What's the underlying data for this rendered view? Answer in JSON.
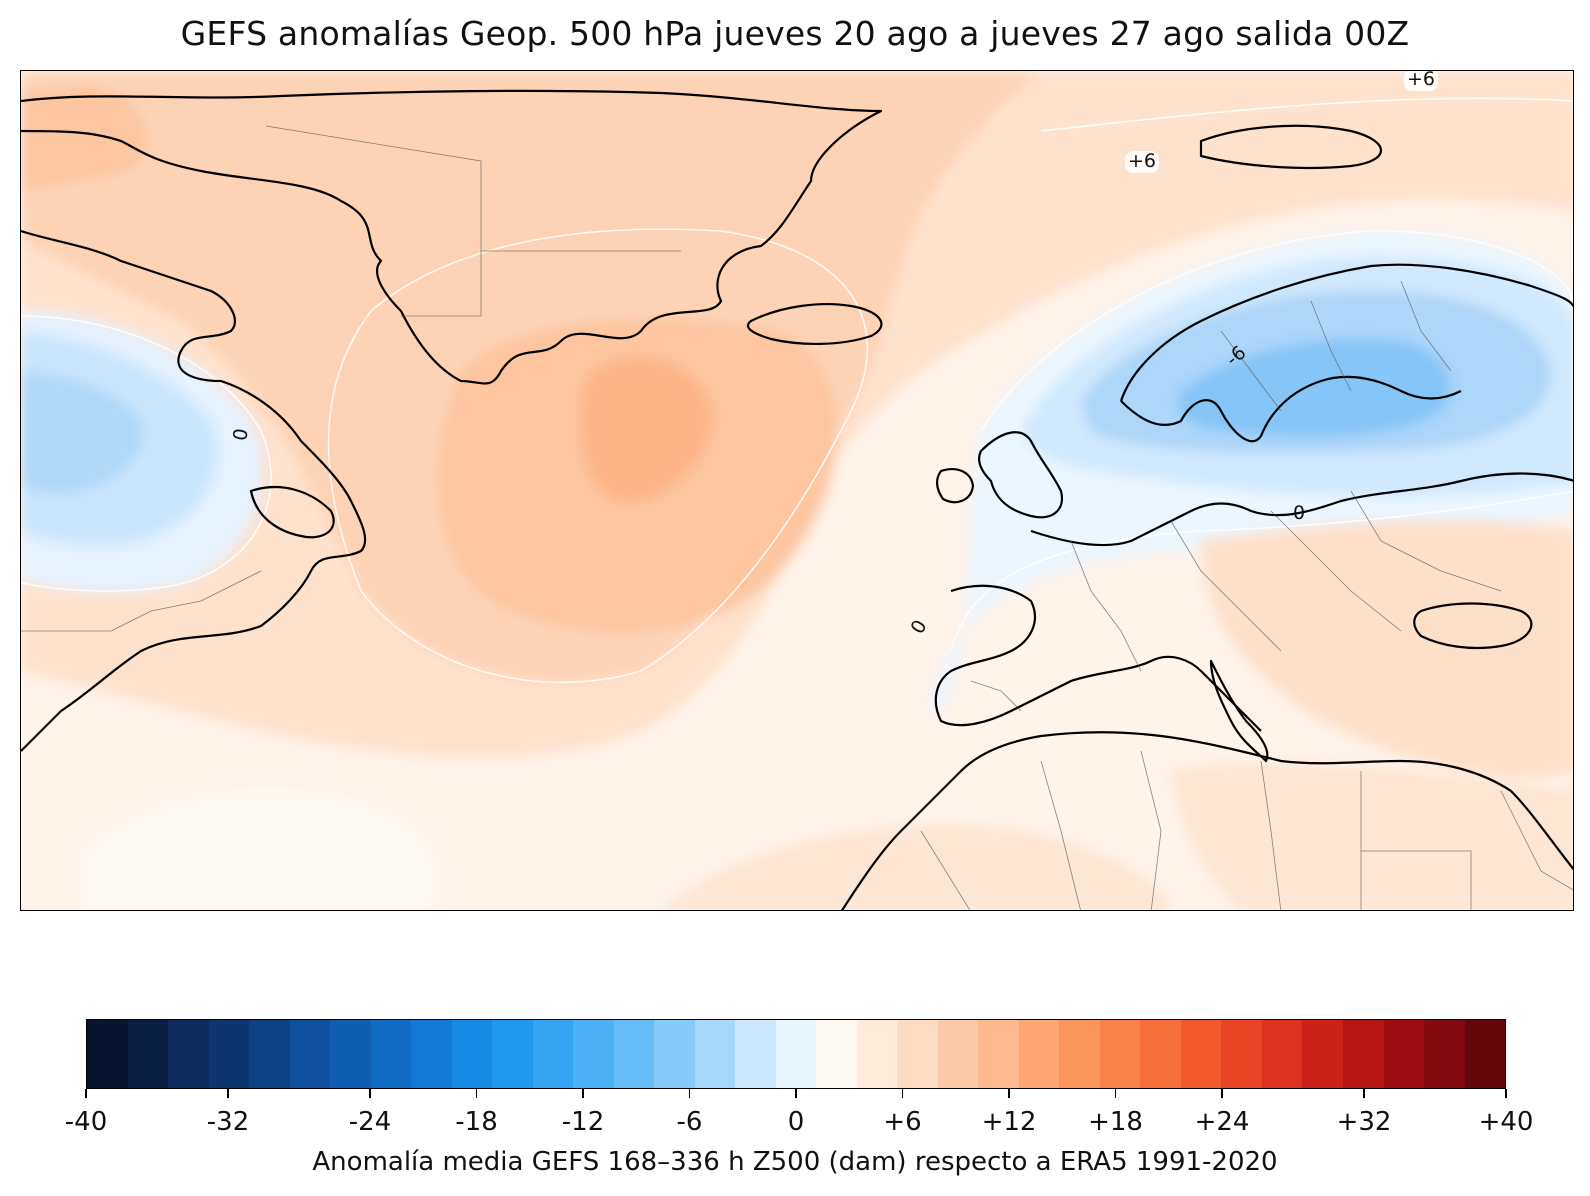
{
  "title": "GEFS anomalías Geop. 500 hPa jueves 20 ago a jueves 27 ago salida 00Z",
  "map": {
    "contour_labels": [
      {
        "text": "+6",
        "name": "contour-label-plus6-north"
      },
      {
        "text": "+6",
        "name": "contour-label-plus6-arctic"
      },
      {
        "text": "0",
        "name": "contour-label-zero-newfoundland"
      },
      {
        "text": "-6",
        "name": "contour-label-minus6-scandinavia"
      },
      {
        "text": "0",
        "name": "contour-label-zero-europe"
      },
      {
        "text": "0",
        "name": "contour-label-zero-iberia"
      }
    ],
    "colors": {
      "ocean_base": "#fff3ea",
      "coast": "#000000",
      "borders": "#555555"
    }
  },
  "colorbar": {
    "min": -40,
    "max": 40,
    "step": 2,
    "tick_labels": [
      "-40",
      "-32",
      "-24",
      "-18",
      "-12",
      "-6",
      "0",
      "+6",
      "+12",
      "+18",
      "+24",
      "+32",
      "+40"
    ],
    "tick_values": [
      -40,
      -32,
      -24,
      -18,
      -12,
      -6,
      0,
      6,
      12,
      18,
      24,
      32,
      40
    ],
    "colors": [
      "#08142e",
      "#0b1f45",
      "#0c2a5c",
      "#0d3570",
      "#0e4285",
      "#0f4f9b",
      "#0f5cb0",
      "#106bc4",
      "#127ad6",
      "#168ae5",
      "#1f98ef",
      "#34a4f2",
      "#4cb0f4",
      "#66bcf6",
      "#85caf8",
      "#a7d8fa",
      "#cbe8fc",
      "#eaf6ff",
      "#fff8f2",
      "#ffeadb",
      "#fedbc3",
      "#fdcaa9",
      "#fdb98f",
      "#fca775",
      "#fb955e",
      "#f9824a",
      "#f66f3b",
      "#f15a2e",
      "#e84425",
      "#dc321f",
      "#cb2119",
      "#b51715",
      "#9c0e11",
      "#810a0e",
      "#62070c"
    ],
    "caption": "Anomalía media GEFS 168–336 h Z500 (dam) respecto a ERA5 1991-2020"
  }
}
